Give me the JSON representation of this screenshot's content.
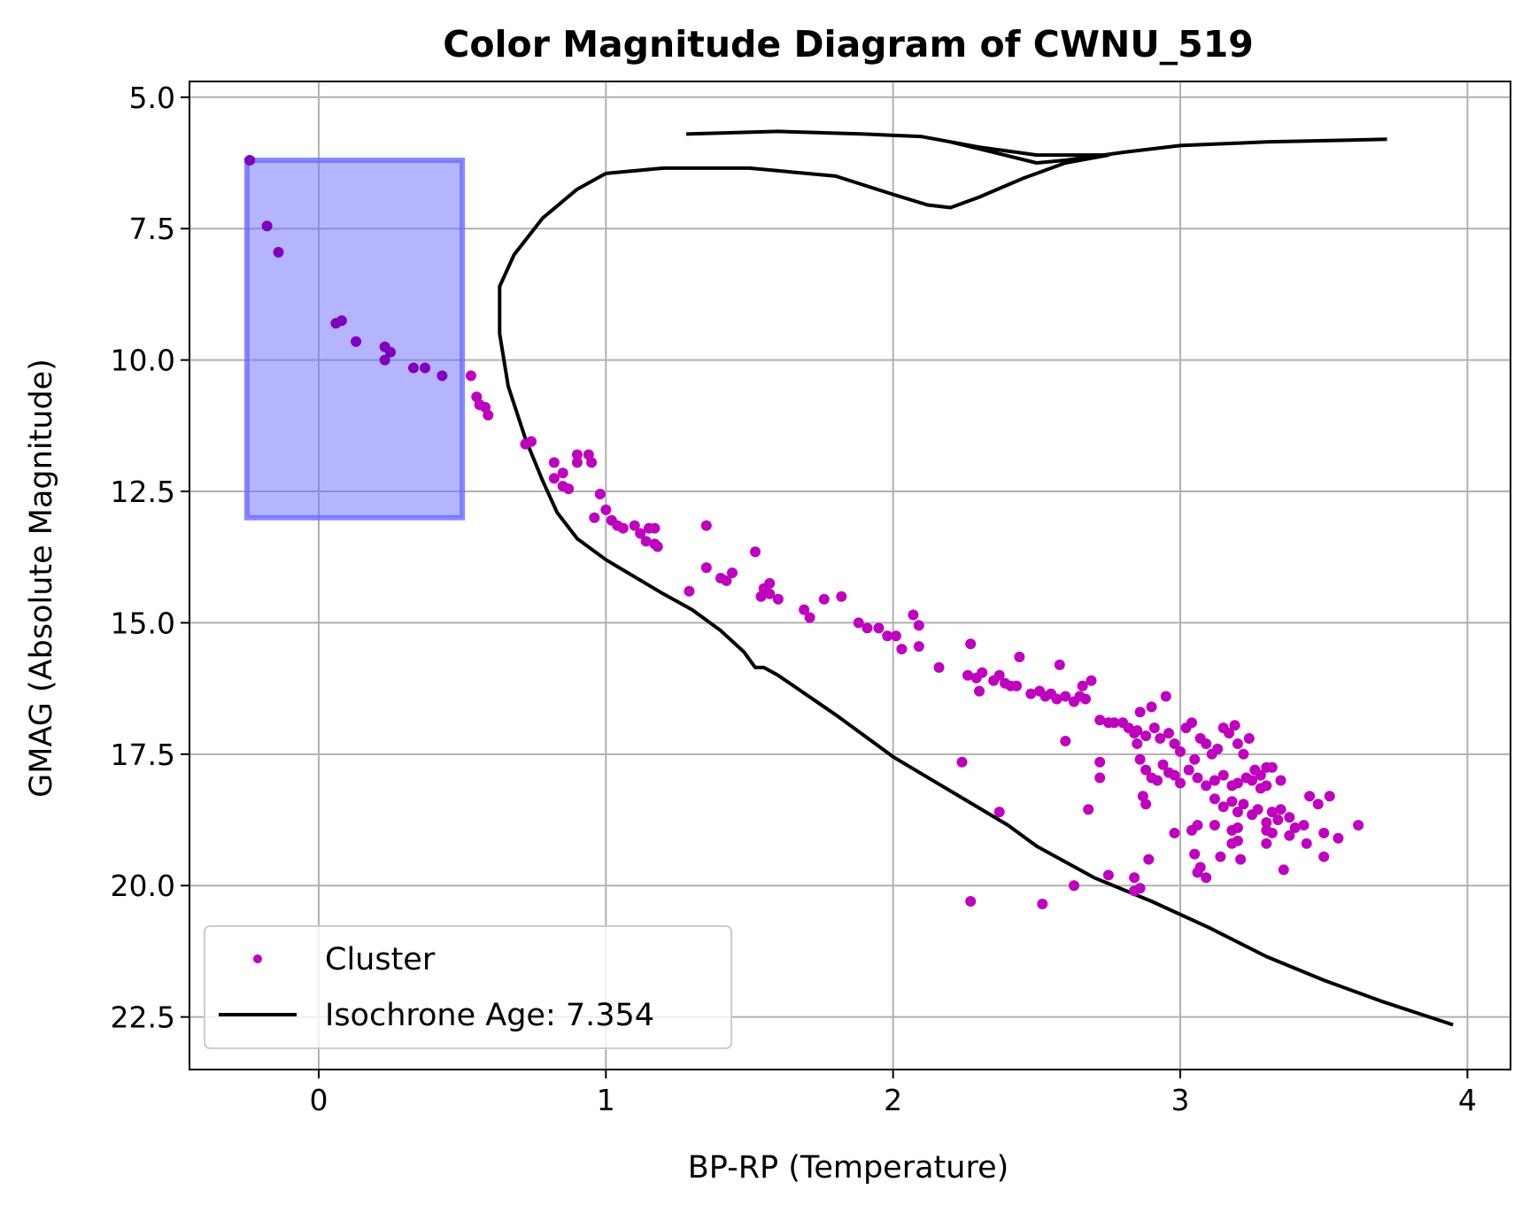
{
  "chart_data": {
    "type": "scatter",
    "title": "Color Magnitude Diagram of CWNU_519",
    "xlabel": "BP-RP (Temperature)",
    "ylabel": "GMAG (Absolute Magnitude)",
    "xlim": [
      -0.45,
      4.15
    ],
    "ylim": [
      23.5,
      4.7
    ],
    "y_inverted": true,
    "grid": true,
    "legend_placement": "lower-left",
    "x_ticks": [
      0,
      1,
      2,
      3,
      4
    ],
    "x_tick_labels": [
      "0",
      "1",
      "2",
      "3",
      "4"
    ],
    "y_ticks": [
      5.0,
      7.5,
      10.0,
      12.5,
      15.0,
      17.5,
      20.0,
      22.5
    ],
    "y_tick_labels": [
      "5.0",
      "7.5",
      "10.0",
      "12.5",
      "15.0",
      "17.5",
      "20.0",
      "22.5"
    ],
    "highlight_box": {
      "x_range": [
        -0.25,
        0.5
      ],
      "y_range": [
        6.2,
        13.0
      ],
      "color": "#6b6bff",
      "opacity": 0.5
    },
    "series": [
      {
        "name": "Cluster",
        "kind": "scatter",
        "color": "#bf00bf",
        "color_in_box": "#7f00bf",
        "points": [
          [
            -0.24,
            6.2
          ],
          [
            -0.18,
            7.45
          ],
          [
            -0.14,
            7.95
          ],
          [
            0.06,
            9.3
          ],
          [
            0.08,
            9.25
          ],
          [
            0.13,
            9.65
          ],
          [
            0.23,
            9.75
          ],
          [
            0.25,
            9.85
          ],
          [
            0.23,
            10.0
          ],
          [
            0.33,
            10.15
          ],
          [
            0.37,
            10.15
          ],
          [
            0.43,
            10.3
          ],
          [
            0.53,
            10.3
          ],
          [
            0.55,
            10.7
          ],
          [
            0.56,
            10.85
          ],
          [
            0.58,
            10.9
          ],
          [
            0.59,
            11.05
          ],
          [
            0.72,
            11.6
          ],
          [
            0.74,
            11.55
          ],
          [
            0.82,
            11.95
          ],
          [
            0.82,
            12.25
          ],
          [
            0.85,
            12.15
          ],
          [
            0.85,
            12.4
          ],
          [
            0.87,
            12.45
          ],
          [
            0.9,
            11.8
          ],
          [
            0.9,
            11.95
          ],
          [
            0.94,
            11.8
          ],
          [
            0.95,
            11.95
          ],
          [
            0.98,
            12.55
          ],
          [
            1.0,
            12.85
          ],
          [
            0.96,
            13.0
          ],
          [
            1.02,
            13.05
          ],
          [
            1.04,
            13.15
          ],
          [
            1.06,
            13.2
          ],
          [
            1.1,
            13.15
          ],
          [
            1.12,
            13.3
          ],
          [
            1.15,
            13.2
          ],
          [
            1.17,
            13.2
          ],
          [
            1.14,
            13.45
          ],
          [
            1.17,
            13.5
          ],
          [
            1.18,
            13.55
          ],
          [
            1.35,
            13.15
          ],
          [
            1.52,
            13.65
          ],
          [
            1.29,
            14.4
          ],
          [
            1.35,
            13.95
          ],
          [
            1.4,
            14.15
          ],
          [
            1.44,
            14.05
          ],
          [
            1.42,
            14.2
          ],
          [
            1.55,
            14.35
          ],
          [
            1.57,
            14.25
          ],
          [
            1.54,
            14.5
          ],
          [
            1.57,
            14.45
          ],
          [
            1.6,
            14.55
          ],
          [
            1.69,
            14.75
          ],
          [
            1.71,
            14.9
          ],
          [
            1.76,
            14.55
          ],
          [
            1.82,
            14.5
          ],
          [
            1.88,
            15.0
          ],
          [
            1.91,
            15.1
          ],
          [
            1.95,
            15.1
          ],
          [
            1.98,
            15.25
          ],
          [
            2.01,
            15.25
          ],
          [
            2.03,
            15.5
          ],
          [
            2.07,
            14.85
          ],
          [
            2.09,
            15.05
          ],
          [
            2.09,
            15.45
          ],
          [
            2.16,
            15.85
          ],
          [
            2.24,
            17.65
          ],
          [
            2.26,
            16.0
          ],
          [
            2.27,
            15.4
          ],
          [
            2.29,
            16.05
          ],
          [
            2.31,
            15.95
          ],
          [
            2.3,
            16.3
          ],
          [
            2.35,
            16.1
          ],
          [
            2.37,
            16.0
          ],
          [
            2.39,
            16.15
          ],
          [
            2.41,
            16.2
          ],
          [
            2.43,
            16.2
          ],
          [
            2.44,
            15.65
          ],
          [
            2.48,
            16.35
          ],
          [
            2.51,
            16.3
          ],
          [
            2.53,
            16.4
          ],
          [
            2.55,
            16.35
          ],
          [
            2.57,
            16.45
          ],
          [
            2.58,
            15.8
          ],
          [
            2.6,
            16.4
          ],
          [
            2.63,
            16.5
          ],
          [
            2.65,
            16.4
          ],
          [
            2.67,
            16.45
          ],
          [
            2.69,
            16.1
          ],
          [
            2.66,
            16.2
          ],
          [
            2.6,
            17.25
          ],
          [
            2.72,
            16.85
          ],
          [
            2.75,
            16.9
          ],
          [
            2.77,
            16.9
          ],
          [
            2.8,
            16.9
          ],
          [
            2.82,
            17.0
          ],
          [
            2.84,
            17.1
          ],
          [
            2.85,
            17.3
          ],
          [
            2.86,
            16.7
          ],
          [
            2.88,
            17.15
          ],
          [
            2.9,
            16.6
          ],
          [
            2.91,
            17.0
          ],
          [
            2.93,
            17.2
          ],
          [
            2.95,
            16.4
          ],
          [
            2.96,
            17.1
          ],
          [
            2.98,
            17.3
          ],
          [
            3.0,
            17.45
          ],
          [
            3.02,
            17.0
          ],
          [
            3.04,
            16.9
          ],
          [
            3.05,
            17.6
          ],
          [
            3.07,
            17.2
          ],
          [
            3.09,
            17.3
          ],
          [
            3.11,
            17.5
          ],
          [
            3.13,
            17.4
          ],
          [
            3.15,
            17.0
          ],
          [
            3.17,
            17.1
          ],
          [
            3.19,
            16.95
          ],
          [
            3.2,
            17.3
          ],
          [
            3.22,
            17.5
          ],
          [
            3.24,
            17.2
          ],
          [
            3.26,
            17.8
          ],
          [
            3.28,
            17.9
          ],
          [
            3.3,
            17.75
          ],
          [
            3.32,
            17.75
          ],
          [
            2.72,
            17.65
          ],
          [
            2.72,
            17.95
          ],
          [
            2.86,
            17.6
          ],
          [
            2.88,
            17.8
          ],
          [
            2.9,
            17.95
          ],
          [
            2.92,
            18.0
          ],
          [
            2.94,
            17.7
          ],
          [
            2.96,
            17.85
          ],
          [
            2.98,
            17.9
          ],
          [
            3.0,
            18.05
          ],
          [
            3.03,
            17.8
          ],
          [
            3.06,
            17.95
          ],
          [
            3.09,
            18.1
          ],
          [
            3.12,
            18.0
          ],
          [
            3.15,
            17.9
          ],
          [
            3.18,
            18.1
          ],
          [
            3.2,
            18.05
          ],
          [
            3.23,
            17.95
          ],
          [
            3.25,
            18.0
          ],
          [
            3.28,
            18.15
          ],
          [
            3.3,
            18.1
          ],
          [
            3.35,
            18.0
          ],
          [
            2.87,
            18.3
          ],
          [
            2.88,
            18.45
          ],
          [
            3.12,
            18.35
          ],
          [
            3.15,
            18.5
          ],
          [
            3.18,
            18.4
          ],
          [
            3.2,
            18.6
          ],
          [
            3.22,
            18.45
          ],
          [
            3.25,
            18.65
          ],
          [
            3.27,
            18.55
          ],
          [
            3.3,
            18.8
          ],
          [
            3.32,
            18.6
          ],
          [
            3.34,
            18.75
          ],
          [
            3.35,
            18.55
          ],
          [
            3.38,
            18.7
          ],
          [
            3.4,
            18.9
          ],
          [
            3.43,
            18.85
          ],
          [
            3.45,
            18.3
          ],
          [
            3.48,
            18.45
          ],
          [
            3.52,
            18.3
          ],
          [
            3.38,
            19.05
          ],
          [
            3.32,
            19.0
          ],
          [
            3.3,
            18.95
          ],
          [
            3.3,
            19.2
          ],
          [
            3.18,
            18.95
          ],
          [
            3.2,
            19.15
          ],
          [
            3.12,
            18.85
          ],
          [
            3.06,
            18.85
          ],
          [
            3.04,
            18.95
          ],
          [
            2.68,
            18.55
          ],
          [
            2.37,
            18.6
          ],
          [
            2.85,
            17.05
          ],
          [
            3.2,
            18.9
          ],
          [
            3.44,
            19.2
          ],
          [
            3.5,
            19.45
          ],
          [
            3.5,
            19.0
          ],
          [
            3.55,
            19.1
          ],
          [
            3.62,
            18.85
          ],
          [
            2.89,
            19.5
          ],
          [
            2.98,
            19.0
          ],
          [
            3.05,
            19.4
          ],
          [
            3.06,
            19.75
          ],
          [
            3.07,
            19.65
          ],
          [
            3.09,
            19.85
          ],
          [
            3.14,
            19.45
          ],
          [
            3.18,
            19.2
          ],
          [
            3.21,
            19.5
          ],
          [
            3.36,
            19.7
          ],
          [
            2.27,
            20.3
          ],
          [
            2.52,
            20.35
          ],
          [
            2.63,
            20.0
          ],
          [
            2.75,
            19.8
          ],
          [
            2.84,
            19.85
          ],
          [
            2.84,
            20.1
          ],
          [
            2.86,
            20.05
          ]
        ]
      },
      {
        "name": "Isochrone Age: 7.354",
        "kind": "line",
        "color": "#000000",
        "points": [
          [
            3.95,
            22.65
          ],
          [
            3.7,
            22.2
          ],
          [
            3.5,
            21.8
          ],
          [
            3.3,
            21.35
          ],
          [
            3.1,
            20.8
          ],
          [
            2.9,
            20.3
          ],
          [
            2.7,
            19.85
          ],
          [
            2.5,
            19.25
          ],
          [
            2.4,
            18.85
          ],
          [
            2.2,
            18.2
          ],
          [
            2.0,
            17.55
          ],
          [
            1.8,
            16.75
          ],
          [
            1.6,
            16.0
          ],
          [
            1.55,
            15.85
          ],
          [
            1.52,
            15.85
          ],
          [
            1.48,
            15.55
          ],
          [
            1.4,
            15.15
          ],
          [
            1.3,
            14.75
          ],
          [
            1.2,
            14.45
          ],
          [
            1.0,
            13.8
          ],
          [
            0.9,
            13.4
          ],
          [
            0.83,
            12.9
          ],
          [
            0.78,
            12.3
          ],
          [
            0.72,
            11.5
          ],
          [
            0.66,
            10.5
          ],
          [
            0.63,
            9.5
          ],
          [
            0.63,
            8.6
          ],
          [
            0.68,
            8.0
          ],
          [
            0.78,
            7.3
          ],
          [
            0.9,
            6.75
          ],
          [
            1.0,
            6.45
          ],
          [
            1.2,
            6.35
          ],
          [
            1.5,
            6.35
          ],
          [
            1.8,
            6.5
          ],
          [
            2.0,
            6.85
          ],
          [
            2.12,
            7.05
          ],
          [
            2.2,
            7.1
          ],
          [
            2.3,
            6.9
          ],
          [
            2.45,
            6.55
          ],
          [
            2.6,
            6.25
          ],
          [
            2.75,
            6.1
          ],
          [
            2.5,
            6.1
          ],
          [
            2.3,
            5.95
          ],
          [
            2.1,
            5.75
          ],
          [
            1.9,
            5.7
          ],
          [
            1.6,
            5.65
          ],
          [
            1.28,
            5.7
          ]
        ]
      },
      {
        "name": "",
        "kind": "line",
        "color": "#000000",
        "points": [
          [
            2.2,
            5.85
          ],
          [
            2.35,
            6.05
          ],
          [
            2.5,
            6.25
          ],
          [
            2.6,
            6.2
          ],
          [
            2.8,
            6.05
          ],
          [
            3.0,
            5.92
          ],
          [
            3.3,
            5.85
          ],
          [
            3.72,
            5.8
          ]
        ]
      }
    ],
    "legend": {
      "entries": [
        "Cluster",
        "Isochrone Age: 7.354"
      ]
    }
  }
}
